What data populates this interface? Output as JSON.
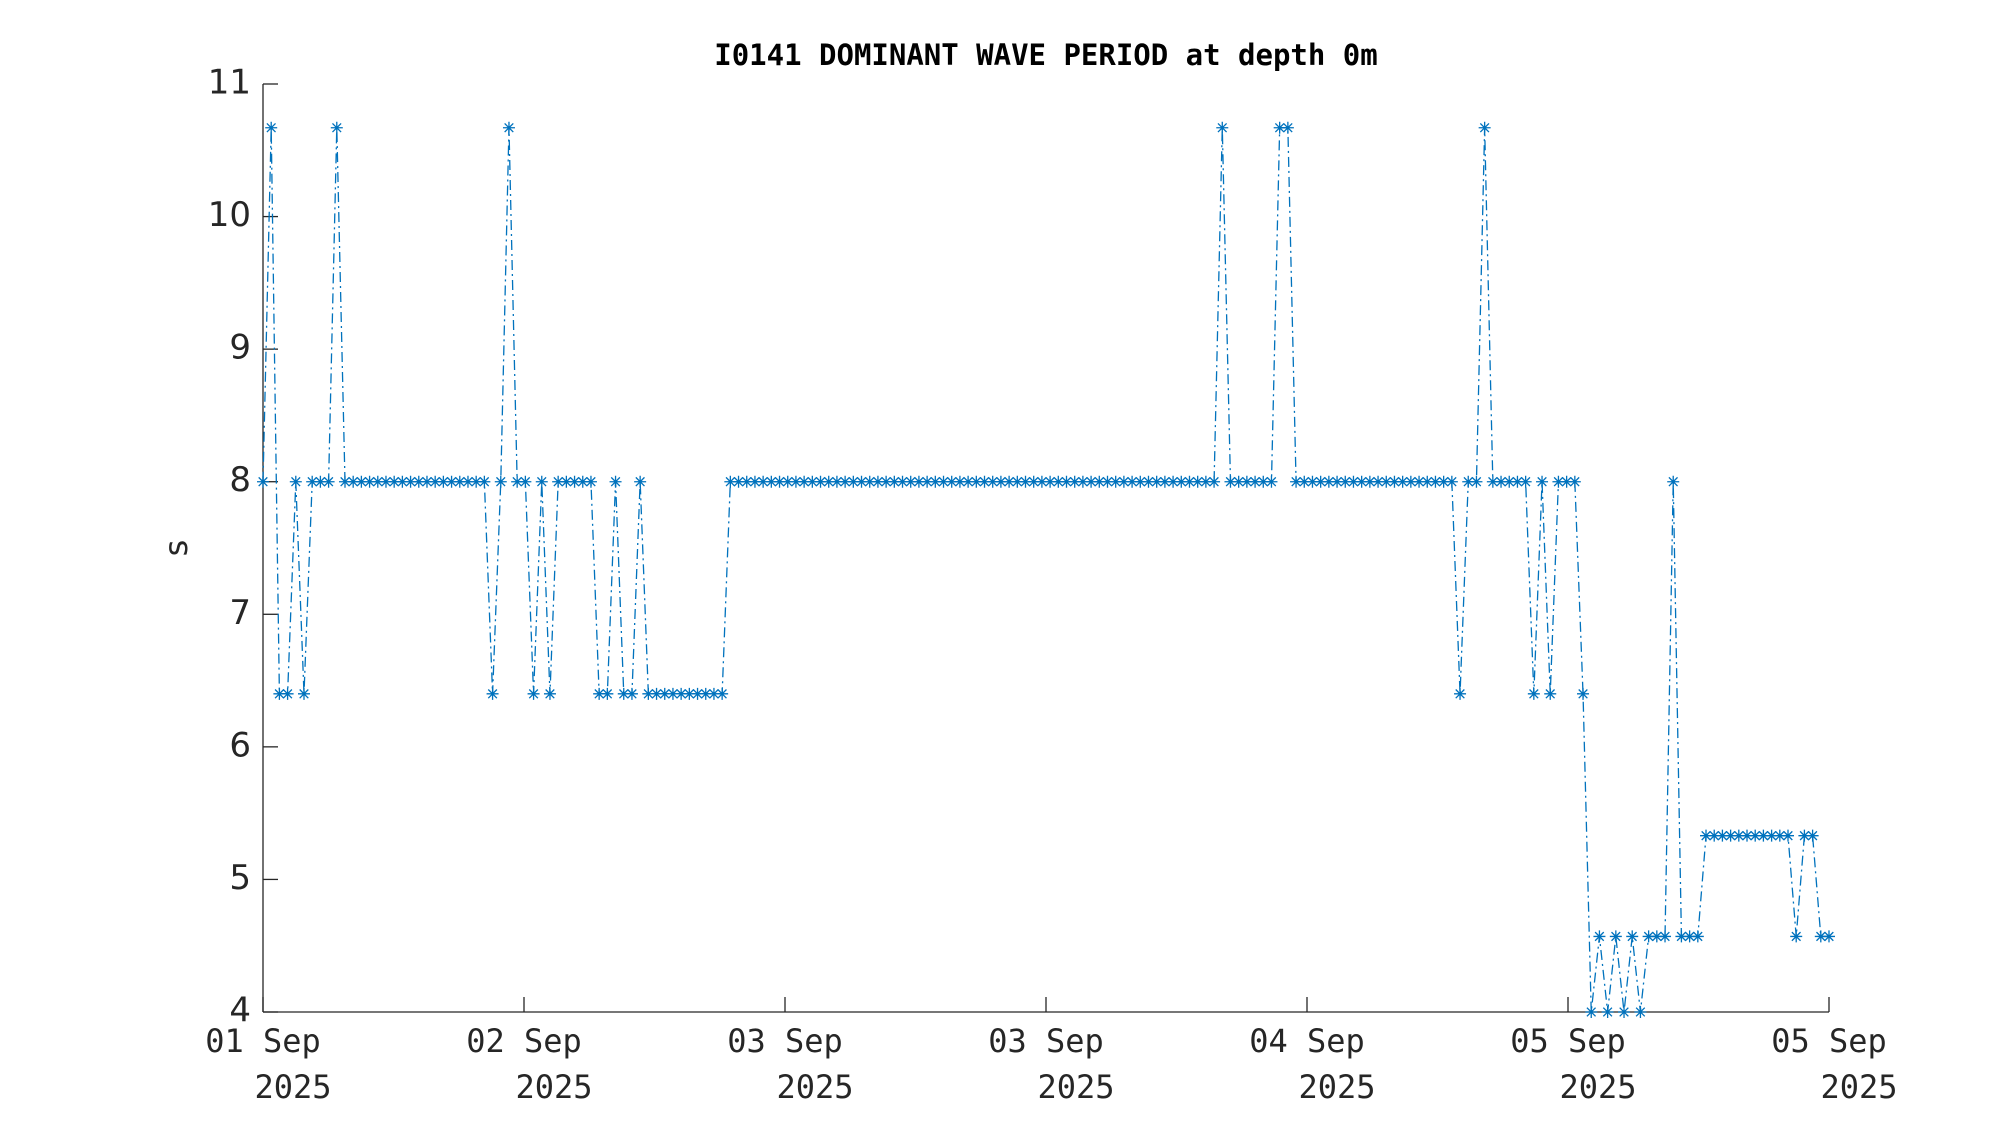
{
  "chart_data": {
    "type": "line",
    "title": "I0141 DOMINANT WAVE PERIOD at depth 0m",
    "ylabel": "s",
    "xtick_labels": [
      [
        "01 Sep",
        "2025"
      ],
      [
        "02 Sep",
        "2025"
      ],
      [
        "03 Sep",
        "2025"
      ],
      [
        "03 Sep",
        "2025"
      ],
      [
        "04 Sep",
        "2025"
      ],
      [
        "05 Sep",
        "2025"
      ],
      [
        "05 Sep",
        "2025"
      ]
    ],
    "ylim": [
      4,
      11
    ],
    "yticks": [
      4,
      5,
      6,
      7,
      8,
      9,
      10,
      11
    ],
    "color": "#0072bd",
    "line_style": "dash-dot",
    "marker": "asterisk",
    "values": [
      8,
      10.67,
      6.4,
      6.4,
      8,
      6.4,
      8,
      8,
      8,
      10.67,
      8,
      8,
      8,
      8,
      8,
      8,
      8,
      8,
      8,
      8,
      8,
      8,
      8,
      8,
      8,
      8,
      8,
      8,
      6.4,
      8,
      10.67,
      8,
      8,
      6.4,
      8,
      6.4,
      8,
      8,
      8,
      8,
      8,
      6.4,
      6.4,
      8,
      6.4,
      6.4,
      8,
      6.4,
      6.4,
      6.4,
      6.4,
      6.4,
      6.4,
      6.4,
      6.4,
      6.4,
      6.4,
      8,
      8,
      8,
      8,
      8,
      8,
      8,
      8,
      8,
      8,
      8,
      8,
      8,
      8,
      8,
      8,
      8,
      8,
      8,
      8,
      8,
      8,
      8,
      8,
      8,
      8,
      8,
      8,
      8,
      8,
      8,
      8,
      8,
      8,
      8,
      8,
      8,
      8,
      8,
      8,
      8,
      8,
      8,
      8,
      8,
      8,
      8,
      8,
      8,
      8,
      8,
      8,
      8,
      8,
      8,
      8,
      8,
      8,
      8,
      8,
      10.67,
      8,
      8,
      8,
      8,
      8,
      8,
      10.67,
      10.67,
      8,
      8,
      8,
      8,
      8,
      8,
      8,
      8,
      8,
      8,
      8,
      8,
      8,
      8,
      8,
      8,
      8,
      8,
      8,
      8,
      6.4,
      8,
      8,
      10.67,
      8,
      8,
      8,
      8,
      8,
      6.4,
      8,
      6.4,
      8,
      8,
      8,
      6.4,
      4,
      4.57,
      4,
      4.57,
      4,
      4.57,
      4,
      4.57,
      4.57,
      4.57,
      8,
      4.57,
      4.57,
      4.57,
      5.33,
      5.33,
      5.33,
      5.33,
      5.33,
      5.33,
      5.33,
      5.33,
      5.33,
      5.33,
      5.33,
      4.57,
      5.33,
      5.33,
      4.57,
      4.57
    ]
  }
}
